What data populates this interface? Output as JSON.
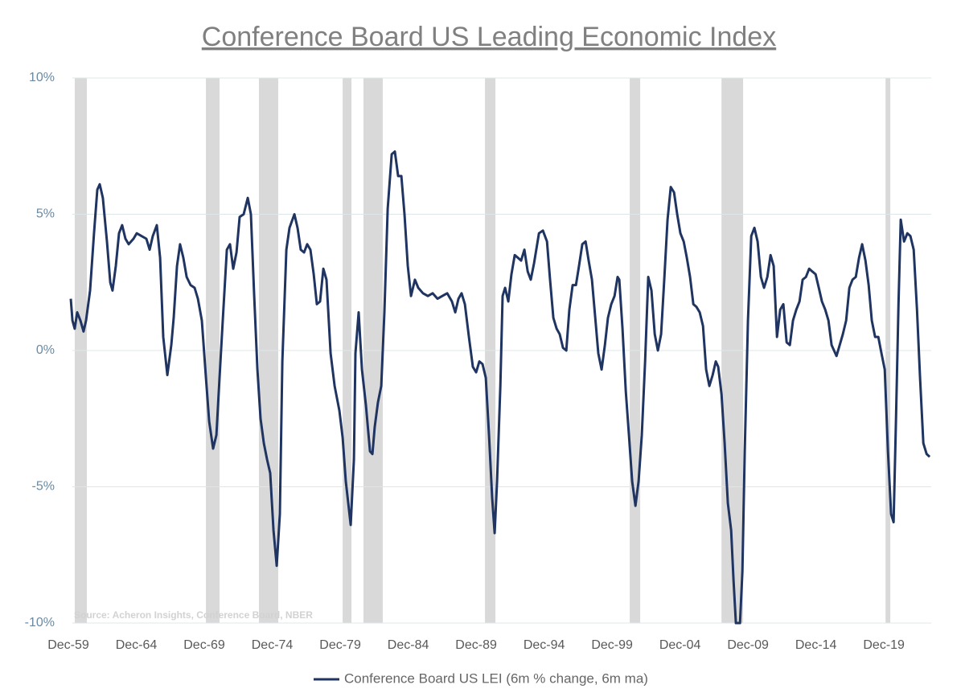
{
  "chart_data": {
    "type": "line",
    "title": "Conference Board US Leading Economic Index",
    "source": "Source: Acheron Insights, Conference Board, NBER",
    "xlim": [
      1959.92,
      2023.4
    ],
    "ylim": [
      -10,
      10
    ],
    "xticks": [
      {
        "value": 1959.92,
        "label": "Dec-59"
      },
      {
        "value": 1964.92,
        "label": "Dec-64"
      },
      {
        "value": 1969.92,
        "label": "Dec-69"
      },
      {
        "value": 1974.92,
        "label": "Dec-74"
      },
      {
        "value": 1979.92,
        "label": "Dec-79"
      },
      {
        "value": 1984.92,
        "label": "Dec-84"
      },
      {
        "value": 1989.92,
        "label": "Dec-89"
      },
      {
        "value": 1994.92,
        "label": "Dec-94"
      },
      {
        "value": 1999.92,
        "label": "Dec-99"
      },
      {
        "value": 2004.92,
        "label": "Dec-04"
      },
      {
        "value": 2009.92,
        "label": "Dec-09"
      },
      {
        "value": 2014.92,
        "label": "Dec-14"
      },
      {
        "value": 2019.92,
        "label": "Dec-19"
      }
    ],
    "yticks": [
      {
        "value": 10,
        "label": "10%"
      },
      {
        "value": 5,
        "label": "5%"
      },
      {
        "value": 0,
        "label": "0%"
      },
      {
        "value": -5,
        "label": "-5%"
      },
      {
        "value": -10,
        "label": "-10%"
      }
    ],
    "grid": true,
    "legend_position": "bottom",
    "shaded_color": "#d9d9d9",
    "shaded_periods": [
      {
        "start": 1960.39,
        "end": 1961.28
      },
      {
        "start": 1970.04,
        "end": 1971.04
      },
      {
        "start": 1973.94,
        "end": 1975.36
      },
      {
        "start": 1980.1,
        "end": 1980.75
      },
      {
        "start": 1981.63,
        "end": 1983.05
      },
      {
        "start": 1990.57,
        "end": 1991.34
      },
      {
        "start": 2001.22,
        "end": 2001.99
      },
      {
        "start": 2007.97,
        "end": 2009.56
      },
      {
        "start": 2020.04,
        "end": 2020.39
      }
    ],
    "x": [
      1960.1,
      1960.22,
      1960.39,
      1960.57,
      1960.81,
      1961.04,
      1961.22,
      1961.52,
      1961.81,
      1962.05,
      1962.23,
      1962.46,
      1962.76,
      1963.0,
      1963.17,
      1963.41,
      1963.65,
      1963.88,
      1964.12,
      1964.36,
      1964.71,
      1964.95,
      1965.3,
      1965.66,
      1965.9,
      1966.13,
      1966.43,
      1966.67,
      1966.9,
      1967.2,
      1967.49,
      1967.67,
      1967.91,
      1968.14,
      1968.38,
      1968.62,
      1968.91,
      1969.21,
      1969.45,
      1969.74,
      1970.04,
      1970.28,
      1970.57,
      1970.81,
      1971.04,
      1971.28,
      1971.58,
      1971.81,
      1972.05,
      1972.29,
      1972.52,
      1972.82,
      1973.12,
      1973.35,
      1973.59,
      1973.83,
      1974.06,
      1974.3,
      1974.54,
      1974.77,
      1975.01,
      1975.25,
      1975.48,
      1975.66,
      1975.96,
      1976.19,
      1976.55,
      1976.78,
      1977.02,
      1977.26,
      1977.49,
      1977.73,
      1977.97,
      1978.2,
      1978.44,
      1978.68,
      1978.91,
      1979.21,
      1979.51,
      1979.86,
      1980.1,
      1980.33,
      1980.69,
      1980.93,
      1981.04,
      1981.28,
      1981.52,
      1981.81,
      1982.11,
      1982.29,
      1982.46,
      1982.7,
      1982.94,
      1983.17,
      1983.41,
      1983.71,
      1983.94,
      1984.18,
      1984.42,
      1984.65,
      1984.89,
      1985.13,
      1985.42,
      1985.66,
      1986.01,
      1986.37,
      1986.72,
      1987.08,
      1987.43,
      1987.79,
      1988.14,
      1988.38,
      1988.62,
      1988.85,
      1989.09,
      1989.39,
      1989.68,
      1989.92,
      1990.16,
      1990.39,
      1990.63,
      1990.87,
      1991.1,
      1991.28,
      1991.46,
      1991.7,
      1991.87,
      1992.05,
      1992.29,
      1992.52,
      1992.76,
      1993.0,
      1993.23,
      1993.47,
      1993.71,
      1993.94,
      1994.18,
      1994.54,
      1994.83,
      1995.13,
      1995.36,
      1995.6,
      1995.84,
      1996.07,
      1996.31,
      1996.55,
      1996.78,
      1997.02,
      1997.26,
      1997.49,
      1997.73,
      1997.97,
      1998.2,
      1998.44,
      1998.68,
      1998.91,
      1999.15,
      1999.39,
      1999.62,
      1999.86,
      2000.1,
      2000.33,
      2000.45,
      2000.69,
      2000.93,
      2001.16,
      2001.4,
      2001.64,
      2001.87,
      2002.11,
      2002.35,
      2002.58,
      2002.82,
      2003.06,
      2003.29,
      2003.53,
      2003.77,
      2004.0,
      2004.24,
      2004.48,
      2004.71,
      2004.95,
      2005.19,
      2005.42,
      2005.66,
      2005.9,
      2006.13,
      2006.37,
      2006.61,
      2006.84,
      2007.08,
      2007.32,
      2007.55,
      2007.73,
      2007.97,
      2008.2,
      2008.44,
      2008.68,
      2008.85,
      2009.03,
      2009.33,
      2009.51,
      2009.68,
      2009.92,
      2010.16,
      2010.39,
      2010.63,
      2010.87,
      2011.1,
      2011.34,
      2011.58,
      2011.81,
      2012.05,
      2012.29,
      2012.52,
      2012.76,
      2013.0,
      2013.23,
      2013.47,
      2013.71,
      2013.94,
      2014.18,
      2014.42,
      2014.65,
      2014.89,
      2015.13,
      2015.36,
      2015.6,
      2015.84,
      2016.07,
      2016.43,
      2016.67,
      2016.9,
      2017.14,
      2017.38,
      2017.61,
      2017.85,
      2018.09,
      2018.32,
      2018.56,
      2018.8,
      2019.03,
      2019.27,
      2019.51,
      2019.74,
      2019.98,
      2020.22,
      2020.45,
      2020.63,
      2020.81,
      2020.99,
      2021.16,
      2021.4,
      2021.64,
      2021.87,
      2022.11,
      2022.35,
      2022.58,
      2022.82,
      2023.06,
      2023.29
    ],
    "series": [
      {
        "name": "Conference Board US LEI (6m % change, 6m ma)",
        "color": "#1f3460",
        "values": [
          1.9,
          1.1,
          0.8,
          1.4,
          1.1,
          0.7,
          1.1,
          2.2,
          4.3,
          5.9,
          6.1,
          5.6,
          4.0,
          2.5,
          2.2,
          3.1,
          4.3,
          4.6,
          4.1,
          3.9,
          4.1,
          4.3,
          4.2,
          4.1,
          3.7,
          4.2,
          4.6,
          3.4,
          0.5,
          -0.9,
          0.2,
          1.2,
          3.1,
          3.9,
          3.4,
          2.7,
          2.4,
          2.3,
          1.9,
          1.1,
          -1.0,
          -2.6,
          -3.6,
          -3.1,
          -1.0,
          1.1,
          3.7,
          3.9,
          3.0,
          3.6,
          4.9,
          5.0,
          5.6,
          5.0,
          2.0,
          -0.7,
          -2.5,
          -3.4,
          -4.0,
          -4.5,
          -6.6,
          -7.9,
          -6.0,
          -0.4,
          3.7,
          4.5,
          5.0,
          4.5,
          3.7,
          3.6,
          3.9,
          3.7,
          2.8,
          1.7,
          1.8,
          3.0,
          2.6,
          -0.1,
          -1.3,
          -2.2,
          -3.2,
          -4.8,
          -6.4,
          -4.0,
          -0.1,
          1.4,
          -0.7,
          -2.0,
          -3.7,
          -3.8,
          -2.8,
          -1.9,
          -1.3,
          1.4,
          5.2,
          7.2,
          7.3,
          6.4,
          6.4,
          5.0,
          3.1,
          2.0,
          2.6,
          2.3,
          2.1,
          2.0,
          2.1,
          1.9,
          2.0,
          2.1,
          1.8,
          1.4,
          1.9,
          2.1,
          1.7,
          0.5,
          -0.6,
          -0.8,
          -0.4,
          -0.5,
          -1.0,
          -3.1,
          -5.4,
          -6.7,
          -4.8,
          -1.3,
          2.0,
          2.3,
          1.8,
          2.8,
          3.5,
          3.4,
          3.3,
          3.7,
          2.9,
          2.6,
          3.2,
          4.3,
          4.4,
          4.0,
          2.6,
          1.2,
          0.8,
          0.6,
          0.1,
          0.0,
          1.5,
          2.4,
          2.4,
          3.1,
          3.9,
          4.0,
          3.3,
          2.6,
          1.2,
          -0.1,
          -0.7,
          0.2,
          1.2,
          1.7,
          2.0,
          2.7,
          2.6,
          0.8,
          -1.5,
          -3.1,
          -4.8,
          -5.7,
          -4.8,
          -3.1,
          -0.4,
          2.7,
          2.2,
          0.6,
          0.0,
          0.6,
          2.7,
          4.8,
          6.0,
          5.8,
          5.0,
          4.3,
          4.0,
          3.4,
          2.7,
          1.7,
          1.6,
          1.4,
          0.9,
          -0.7,
          -1.3,
          -0.9,
          -0.4,
          -0.6,
          -1.6,
          -3.4,
          -5.6,
          -6.6,
          -8.4,
          -10.0,
          -10.0,
          -8.1,
          -3.7,
          1.1,
          4.2,
          4.5,
          4.0,
          2.7,
          2.3,
          2.7,
          3.5,
          3.1,
          0.5,
          1.5,
          1.7,
          0.3,
          0.2,
          1.1,
          1.5,
          1.8,
          2.6,
          2.7,
          3.0,
          2.9,
          2.8,
          2.3,
          1.8,
          1.5,
          1.1,
          0.2,
          -0.2,
          0.2,
          0.6,
          1.1,
          2.3,
          2.6,
          2.7,
          3.4,
          3.9,
          3.3,
          2.4,
          1.1,
          0.5,
          0.5,
          -0.1,
          -0.7,
          -3.7,
          -6.0,
          -6.3,
          -2.5,
          1.7,
          4.8,
          4.0,
          4.3,
          4.2,
          3.7,
          1.5,
          -1.0,
          -3.4,
          -3.8,
          -3.9
        ]
      }
    ]
  }
}
